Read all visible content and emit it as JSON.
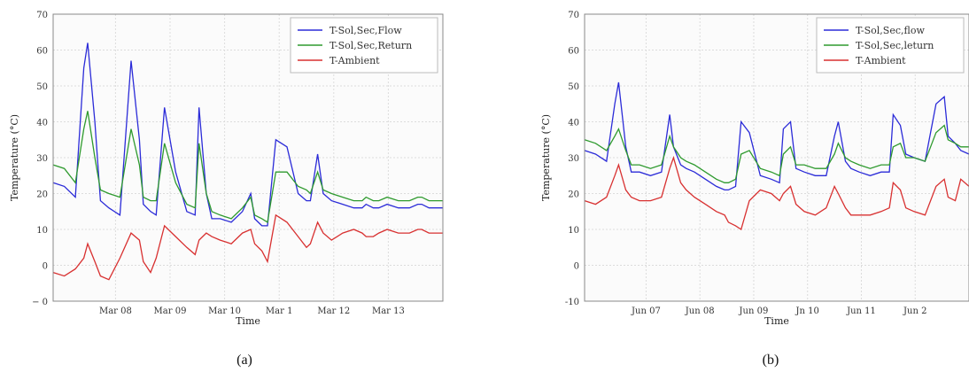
{
  "chart_data": [
    {
      "type": "line",
      "caption": "(a)",
      "xlabel": "Time",
      "ylabel": "Temperature (°C)",
      "ylim": [
        -10,
        70
      ],
      "yticks": [
        "− 0",
        "0",
        "10",
        "20",
        "30",
        "40",
        "50",
        "60",
        "70"
      ],
      "xticks": [
        "Mar 08",
        "Mar 09",
        "Mar 10",
        "Mar 1",
        "Mar 12",
        "Mar 13"
      ],
      "xlim": [
        7.0,
        14.0
      ],
      "x": [
        7.0,
        7.2,
        7.4,
        7.55,
        7.62,
        7.75,
        7.85,
        8.0,
        8.2,
        8.4,
        8.55,
        8.62,
        8.75,
        8.85,
        9.0,
        9.2,
        9.4,
        9.55,
        9.62,
        9.75,
        9.85,
        10.0,
        10.2,
        10.4,
        10.55,
        10.62,
        10.75,
        10.85,
        11.0,
        11.2,
        11.4,
        11.55,
        11.62,
        11.75,
        11.85,
        12.0,
        12.2,
        12.4,
        12.55,
        12.62,
        12.75,
        12.85,
        13.0,
        13.2,
        13.4,
        13.55,
        13.62,
        13.75,
        13.85,
        14.0
      ],
      "grid": true,
      "legend_position": "top-right",
      "series": [
        {
          "name": "T-Sol,Sec,Flow",
          "color": "#2b2bd8",
          "values": [
            23,
            22,
            19,
            55,
            62,
            40,
            18,
            16,
            14,
            57,
            35,
            17,
            15,
            14,
            44,
            26,
            15,
            14,
            44,
            20,
            13,
            13,
            12,
            15,
            20,
            13,
            11,
            11,
            35,
            33,
            20,
            18,
            18,
            31,
            20,
            18,
            17,
            16,
            16,
            17,
            16,
            16,
            17,
            16,
            16,
            17,
            17,
            16,
            16,
            16
          ]
        },
        {
          "name": "T-Sol,Sec,Return",
          "color": "#2e9a2e",
          "values": [
            28,
            27,
            23,
            38,
            43,
            30,
            21,
            20,
            19,
            38,
            28,
            19,
            18,
            18,
            34,
            23,
            17,
            16,
            34,
            20,
            15,
            14,
            13,
            16,
            19,
            14,
            13,
            12,
            26,
            26,
            22,
            21,
            20,
            26,
            21,
            20,
            19,
            18,
            18,
            19,
            18,
            18,
            19,
            18,
            18,
            19,
            19,
            18,
            18,
            18
          ]
        },
        {
          "name": "T-Ambient",
          "color": "#d83030",
          "values": [
            -2,
            -3,
            -1,
            2,
            6,
            1,
            -3,
            -4,
            2,
            9,
            7,
            1,
            -2,
            2,
            11,
            8,
            5,
            3,
            7,
            9,
            8,
            7,
            6,
            9,
            10,
            6,
            4,
            1,
            14,
            12,
            8,
            5,
            6,
            12,
            9,
            7,
            9,
            10,
            9,
            8,
            8,
            9,
            10,
            9,
            9,
            10,
            10,
            9,
            9,
            9
          ]
        }
      ]
    },
    {
      "type": "line",
      "caption": "(b)",
      "xlabel": "Time",
      "ylabel": "Temperature (°C)",
      "ylim": [
        -10,
        70
      ],
      "yticks": [
        "-10",
        "0",
        "10",
        "20",
        "30",
        "40",
        "50",
        "60",
        "70"
      ],
      "xticks": [
        "Jun 07",
        "Jun 08",
        "Jun 09",
        "Jn 10",
        "Jun 11",
        "Jun 2"
      ],
      "xlim": [
        6.0,
        13.0
      ],
      "x": [
        6.0,
        6.2,
        6.4,
        6.55,
        6.62,
        6.75,
        6.85,
        7.0,
        7.2,
        7.4,
        7.55,
        7.62,
        7.75,
        7.85,
        8.0,
        8.2,
        8.4,
        8.55,
        8.62,
        8.75,
        8.85,
        9.0,
        9.2,
        9.4,
        9.55,
        9.62,
        9.75,
        9.85,
        10.0,
        10.2,
        10.4,
        10.55,
        10.62,
        10.75,
        10.85,
        11.0,
        11.2,
        11.4,
        11.55,
        11.62,
        11.75,
        11.85,
        12.0,
        12.2,
        12.4,
        12.55,
        12.62,
        12.75,
        12.85,
        13.0
      ],
      "grid": true,
      "legend_position": "top-right",
      "series": [
        {
          "name": "T-Sol,Sec,flow",
          "color": "#2b2bd8",
          "values": [
            32,
            31,
            29,
            45,
            51,
            33,
            26,
            26,
            25,
            26,
            42,
            33,
            28,
            27,
            26,
            24,
            22,
            21,
            21,
            22,
            40,
            37,
            25,
            24,
            23,
            38,
            40,
            27,
            26,
            25,
            25,
            36,
            40,
            29,
            27,
            26,
            25,
            26,
            26,
            42,
            39,
            31,
            30,
            29,
            45,
            47,
            36,
            34,
            32,
            31
          ]
        },
        {
          "name": "T-Sol,Sec,leturn",
          "color": "#2e9a2e",
          "values": [
            35,
            34,
            32,
            36,
            38,
            32,
            28,
            28,
            27,
            28,
            36,
            33,
            30,
            29,
            28,
            26,
            24,
            23,
            23,
            24,
            31,
            32,
            27,
            26,
            25,
            31,
            33,
            28,
            28,
            27,
            27,
            31,
            34,
            30,
            29,
            28,
            27,
            28,
            28,
            33,
            34,
            30,
            30,
            29,
            37,
            39,
            35,
            34,
            33,
            33
          ]
        },
        {
          "name": "T-Ambient",
          "color": "#d83030",
          "values": [
            18,
            17,
            19,
            25,
            28,
            21,
            19,
            18,
            18,
            19,
            27,
            30,
            23,
            21,
            19,
            17,
            15,
            14,
            12,
            11,
            10,
            18,
            21,
            20,
            18,
            20,
            22,
            17,
            15,
            14,
            16,
            22,
            20,
            16,
            14,
            14,
            14,
            15,
            16,
            23,
            21,
            16,
            15,
            14,
            22,
            24,
            19,
            18,
            24,
            22
          ]
        }
      ]
    }
  ]
}
